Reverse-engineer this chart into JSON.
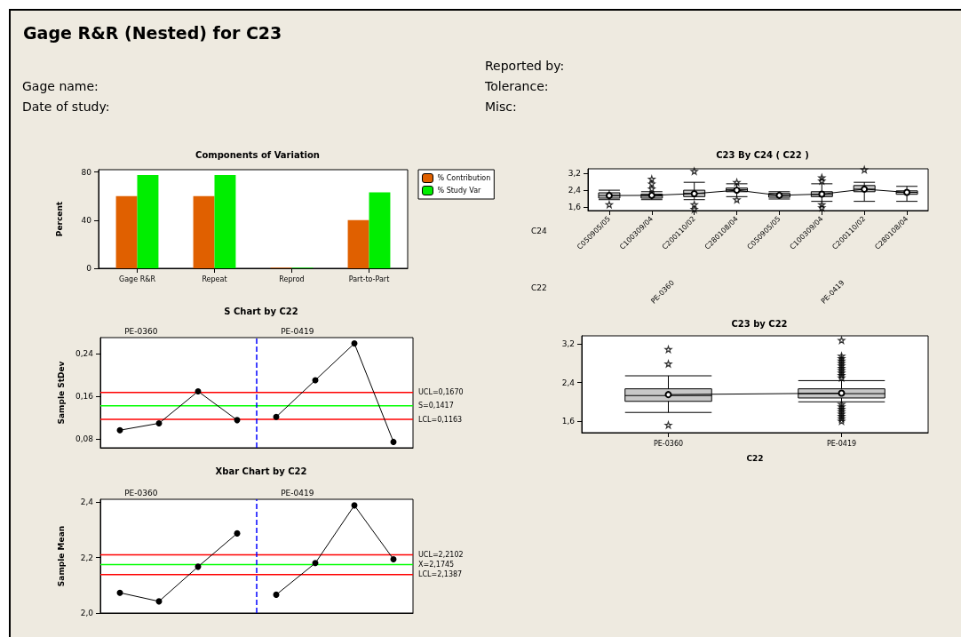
{
  "chart_data": [
    {
      "type": "other",
      "title": "Gage R&R (Nested) for C23",
      "annotations": [
        "Gage name:",
        "Date of study:",
        "Reported by:",
        "Tolerance:",
        "Misc:"
      ]
    },
    {
      "type": "bar",
      "title": "Components of Variation",
      "categories": [
        "Gage R&R",
        "Repeat",
        "Reprod",
        "Part-to-Part"
      ],
      "ylabel": "Percent",
      "ylim": [
        0,
        82
      ],
      "yticks": [
        0,
        40,
        80
      ],
      "legend": "right",
      "series": [
        {
          "name": "% Contribution",
          "color": "#e06000",
          "values": [
            60,
            60,
            0.5,
            40
          ]
        },
        {
          "name": "% Study Var",
          "color": "#00ee00",
          "values": [
            77.5,
            77.5,
            0.5,
            63.2
          ]
        }
      ]
    },
    {
      "type": "line",
      "title": "S Chart by C22",
      "ylabel": "Sample StDev",
      "categories": [
        null,
        null,
        null,
        null,
        null,
        null,
        null,
        null
      ],
      "ylim": [
        0.063,
        0.27
      ],
      "yticks": [
        {
          "value": 0.08,
          "label": "0,08"
        },
        {
          "value": 0.16,
          "label": "0,16"
        },
        {
          "value": 0.24,
          "label": "0,24"
        }
      ],
      "tick_labels": "y",
      "marker": "circle",
      "series": [
        {
          "color": "#000000",
          "values": [
            0.096,
            0.109,
            0.169,
            0.115,
            null,
            null,
            null,
            null
          ]
        },
        {
          "color": "#000000",
          "values": [
            null,
            null,
            null,
            null,
            0.121,
            0.19,
            0.259,
            0.074
          ]
        }
      ],
      "ref_lines": [
        {
          "axis": "y",
          "value": 0.167,
          "label": "UCL=0,1670",
          "color": "#ff0000"
        },
        {
          "axis": "y",
          "value": 0.1417,
          "label": "S=0,1417",
          "color": "#00ff00"
        },
        {
          "axis": "y",
          "value": 0.1163,
          "label": "LCL=0,1163",
          "color": "#ff0000"
        }
      ],
      "annotations": [
        "PE-0360",
        "PE-0419"
      ]
    },
    {
      "type": "line",
      "title": "Xbar Chart by C22",
      "ylabel": "Sample Mean",
      "categories": [
        null,
        null,
        null,
        null,
        null,
        null,
        null,
        null
      ],
      "ylim": [
        2.0,
        2.41
      ],
      "yticks": [
        {
          "value": 2.0,
          "label": "2,0"
        },
        {
          "value": 2.2,
          "label": "2,2"
        },
        {
          "value": 2.4,
          "label": "2,4"
        }
      ],
      "tick_labels": "y",
      "marker": "circle",
      "series": [
        {
          "color": "#000000",
          "values": [
            2.073,
            2.042,
            2.167,
            2.287,
            null,
            null,
            null,
            null
          ]
        },
        {
          "color": "#000000",
          "values": [
            null,
            null,
            null,
            null,
            2.066,
            2.18,
            2.388,
            2.194
          ]
        }
      ],
      "ref_lines": [
        {
          "axis": "y",
          "value": 2.2102,
          "label": "UCL=2,2102",
          "color": "#ff0000"
        },
        {
          "axis": "y",
          "value": 2.1745,
          "label": "X=2,1745",
          "color": "#00ff00"
        },
        {
          "axis": "y",
          "value": 2.1387,
          "label": "LCL=2,1387",
          "color": "#ff0000"
        }
      ],
      "annotations": [
        "PE-0360",
        "PE-0419"
      ]
    },
    {
      "type": "box",
      "title": "C23 By C24 ( C22 )",
      "xlabel": "C24",
      "categories": [
        "C050905/05",
        "C100309/04",
        "C200110/02",
        "C280108/04",
        "C050905/05",
        "C100309/04",
        "C200110/02",
        "C280108/04"
      ],
      "ylim": [
        1.45,
        3.4
      ],
      "yticks": [
        {
          "value": 1.6,
          "label": "1,6"
        },
        {
          "value": 2.4,
          "label": "2,4"
        },
        {
          "value": 3.2,
          "label": "3,2"
        }
      ],
      "boxes": [
        {
          "low": 1.96,
          "q1": 2.03,
          "median": 2.15,
          "q3": 2.28,
          "high": 2.4,
          "outliers": [
            1.73
          ]
        },
        {
          "low": 1.96,
          "q1": 2.03,
          "median": 2.13,
          "q3": 2.22,
          "high": 2.33,
          "outliers": [
            2.47,
            2.7,
            2.92
          ]
        },
        {
          "low": 1.96,
          "q1": 2.1,
          "median": 2.25,
          "q3": 2.4,
          "high": 2.77,
          "outliers": [
            1.51,
            1.73,
            3.29
          ]
        },
        {
          "low": 2.1,
          "q1": 2.33,
          "median": 2.42,
          "q3": 2.5,
          "high": 2.7,
          "outliers": [
            1.96,
            2.77
          ]
        },
        {
          "low": 1.99,
          "q1": 2.07,
          "median": 2.16,
          "q3": 2.25,
          "high": 2.33
        },
        {
          "low": 1.88,
          "q1": 2.1,
          "median": 2.2,
          "q3": 2.33,
          "high": 2.7,
          "outliers": [
            1.59,
            1.73,
            2.84,
            2.99
          ]
        },
        {
          "low": 1.88,
          "q1": 2.33,
          "median": 2.45,
          "q3": 2.62,
          "high": 2.77,
          "outliers": [
            3.36
          ]
        },
        {
          "low": 1.88,
          "q1": 2.21,
          "median": 2.3,
          "q3": 2.37,
          "high": 2.58
        }
      ],
      "series": [
        {
          "type": "line",
          "color": "#000000",
          "values": [
            2.15,
            2.16,
            2.24,
            2.4,
            2.16,
            2.22,
            2.45,
            2.3
          ]
        }
      ],
      "marker": "circle",
      "annotations": [
        "C22",
        "PE-0360",
        "PE-0419"
      ]
    },
    {
      "type": "box",
      "title": "C23 by C22",
      "xlabel": "C22",
      "categories": [
        "PE-0360",
        "PE-0419"
      ],
      "ylim": [
        1.36,
        3.37
      ],
      "yticks": [
        {
          "value": 1.6,
          "label": "1,6"
        },
        {
          "value": 2.4,
          "label": "2,4"
        },
        {
          "value": 3.2,
          "label": "3,2"
        }
      ],
      "boxes": [
        {
          "low": 1.78,
          "q1": 2.01,
          "median": 2.13,
          "q3": 2.27,
          "high": 2.54,
          "outliers": [
            1.52,
            2.79,
            3.09
          ]
        },
        {
          "low": 2.0,
          "q1": 2.08,
          "median": 2.17,
          "q3": 2.27,
          "high": 2.44,
          "outliers": [
            1.6,
            1.65,
            1.7,
            1.75,
            1.8,
            1.85,
            1.9,
            1.95,
            2.5,
            2.55,
            2.6,
            2.65,
            2.7,
            2.75,
            2.8,
            2.85,
            2.9,
            2.95,
            3.28
          ]
        }
      ],
      "series": [
        {
          "type": "line",
          "color": "#000000",
          "values": [
            2.15,
            2.18
          ]
        }
      ],
      "marker": "circle"
    }
  ]
}
